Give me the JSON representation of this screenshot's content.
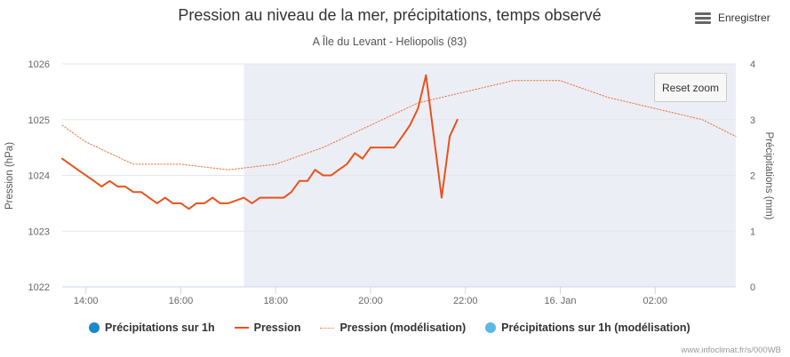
{
  "header": {
    "title": "Pression au niveau de la mer, précipitations, temps observé",
    "subtitle": "A Île du Levant - Heliopolis (83)"
  },
  "export": {
    "label": "Enregistrer",
    "icon": "menu-icon"
  },
  "reset": {
    "label": "Reset zoom"
  },
  "legend": [
    {
      "label": "Précipitations sur 1h",
      "color": "#1f77b4",
      "symbol": "dot"
    },
    {
      "label": "Pression",
      "color": "#e8521b",
      "symbol": "line"
    },
    {
      "label": "Pression (modélisation)",
      "color": "#f0a070",
      "symbol": "dotted-line"
    },
    {
      "label": "Précipitations sur 1h (modélisation)",
      "color": "#5bb8e8",
      "symbol": "dot"
    }
  ],
  "credit": "www.infoclimat.fr/s/000WB",
  "chart_data": {
    "type": "line",
    "title": "Pression au niveau de la mer, précipitations, temps observé",
    "subtitle": "A Île du Levant - Heliopolis (83)",
    "x_unit": "hours since 00:00 on the first day",
    "xlim": [
      13.5,
      27.7
    ],
    "x_ticks": [
      {
        "x": 14,
        "label": "14:00"
      },
      {
        "x": 16,
        "label": "16:00"
      },
      {
        "x": 18,
        "label": "18:00"
      },
      {
        "x": 20,
        "label": "20:00"
      },
      {
        "x": 22,
        "label": "22:00"
      },
      {
        "x": 24,
        "label": "16. Jan"
      },
      {
        "x": 26,
        "label": "02:00"
      }
    ],
    "y_left": {
      "label": "Pression (hPa)",
      "lim": [
        1022,
        1026
      ],
      "ticks": [
        "1022",
        "1023",
        "1024",
        "1025",
        "1026"
      ]
    },
    "y_right": {
      "label": "Précipitations (mm)",
      "lim": [
        0,
        4
      ],
      "ticks": [
        "0",
        "1",
        "2",
        "3",
        "4"
      ]
    },
    "observed_band": [
      17.33,
      27.7
    ],
    "grid": true,
    "legend_position": "bottom",
    "series": [
      {
        "name": "Pression",
        "style": "solid",
        "color": "#e8521b",
        "points": [
          [
            13.5,
            1024.3
          ],
          [
            13.83,
            1024.1
          ],
          [
            14.17,
            1023.9
          ],
          [
            14.33,
            1023.8
          ],
          [
            14.5,
            1023.9
          ],
          [
            14.67,
            1023.8
          ],
          [
            14.83,
            1023.8
          ],
          [
            15.0,
            1023.7
          ],
          [
            15.17,
            1023.7
          ],
          [
            15.33,
            1023.6
          ],
          [
            15.5,
            1023.5
          ],
          [
            15.67,
            1023.6
          ],
          [
            15.83,
            1023.5
          ],
          [
            16.0,
            1023.5
          ],
          [
            16.17,
            1023.4
          ],
          [
            16.33,
            1023.5
          ],
          [
            16.5,
            1023.5
          ],
          [
            16.67,
            1023.6
          ],
          [
            16.83,
            1023.5
          ],
          [
            17.0,
            1023.5
          ],
          [
            17.17,
            1023.55
          ],
          [
            17.33,
            1023.6
          ],
          [
            17.5,
            1023.5
          ],
          [
            17.67,
            1023.6
          ],
          [
            17.83,
            1023.6
          ],
          [
            18.0,
            1023.6
          ],
          [
            18.17,
            1023.6
          ],
          [
            18.33,
            1023.7
          ],
          [
            18.5,
            1023.9
          ],
          [
            18.67,
            1023.9
          ],
          [
            18.83,
            1024.1
          ],
          [
            19.0,
            1024.0
          ],
          [
            19.17,
            1024.0
          ],
          [
            19.33,
            1024.1
          ],
          [
            19.5,
            1024.2
          ],
          [
            19.67,
            1024.4
          ],
          [
            19.83,
            1024.3
          ],
          [
            20.0,
            1024.5
          ],
          [
            20.17,
            1024.5
          ],
          [
            20.33,
            1024.5
          ],
          [
            20.5,
            1024.5
          ],
          [
            20.67,
            1024.7
          ],
          [
            20.83,
            1024.9
          ],
          [
            21.0,
            1025.2
          ],
          [
            21.17,
            1025.8
          ],
          [
            21.5,
            1023.6
          ],
          [
            21.67,
            1024.7
          ],
          [
            21.83,
            1025.0
          ]
        ]
      },
      {
        "name": "Pression (modélisation)",
        "style": "dotted",
        "color": "#f0a070",
        "points": [
          [
            13.5,
            1024.9
          ],
          [
            14.0,
            1024.6
          ],
          [
            15.0,
            1024.2
          ],
          [
            16.0,
            1024.2
          ],
          [
            17.0,
            1024.1
          ],
          [
            18.0,
            1024.2
          ],
          [
            19.0,
            1024.5
          ],
          [
            20.0,
            1024.9
          ],
          [
            21.0,
            1025.3
          ],
          [
            22.0,
            1025.5
          ],
          [
            23.0,
            1025.7
          ],
          [
            24.0,
            1025.7
          ],
          [
            25.0,
            1025.4
          ],
          [
            26.0,
            1025.2
          ],
          [
            27.0,
            1025.0
          ],
          [
            27.7,
            1024.7
          ]
        ]
      }
    ]
  }
}
